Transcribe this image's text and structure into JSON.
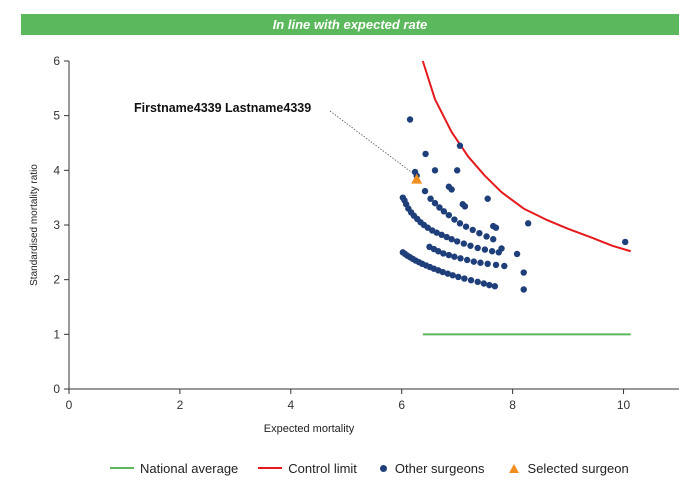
{
  "header": {
    "title": "In line with expected rate"
  },
  "colors": {
    "banner": "#5cb85c",
    "national_average": "#5cb85c",
    "control_limit": "#e41a1c",
    "other_surgeons": "#1f3f7a",
    "selected_surgeon": "#f28e1e",
    "axis": "#333333"
  },
  "chart_data": {
    "type": "scatter",
    "title": "",
    "xlabel": "Expected mortality",
    "ylabel": "Standardised mortality ratio",
    "xlim": [
      0,
      11
    ],
    "ylim": [
      0,
      6
    ],
    "xticks": [
      0,
      2,
      4,
      6,
      8,
      10
    ],
    "yticks": [
      0,
      1,
      2,
      3,
      4,
      5,
      6
    ],
    "grid": false,
    "legend_position": "bottom",
    "annotation": {
      "text": "Firstname4339 Lastname4339",
      "points_to": [
        6.27,
        3.84
      ]
    },
    "series": [
      {
        "name": "National average",
        "kind": "line",
        "points": [
          [
            6.38,
            1.0
          ],
          [
            10.13,
            1.0
          ]
        ]
      },
      {
        "name": "Control limit",
        "kind": "line",
        "points": [
          [
            6.38,
            6.0
          ],
          [
            6.6,
            5.3
          ],
          [
            6.9,
            4.7
          ],
          [
            7.2,
            4.25
          ],
          [
            7.5,
            3.9
          ],
          [
            7.8,
            3.6
          ],
          [
            8.2,
            3.3
          ],
          [
            8.6,
            3.1
          ],
          [
            9.0,
            2.93
          ],
          [
            9.4,
            2.78
          ],
          [
            9.8,
            2.62
          ],
          [
            10.13,
            2.52
          ]
        ]
      },
      {
        "name": "Other surgeons",
        "kind": "scatter",
        "points": [
          [
            6.02,
            3.5
          ],
          [
            6.05,
            3.45
          ],
          [
            6.08,
            3.38
          ],
          [
            6.12,
            3.3
          ],
          [
            6.17,
            3.23
          ],
          [
            6.22,
            3.17
          ],
          [
            6.28,
            3.11
          ],
          [
            6.34,
            3.05
          ],
          [
            6.4,
            3.0
          ],
          [
            6.47,
            2.95
          ],
          [
            6.55,
            2.9
          ],
          [
            6.63,
            2.86
          ],
          [
            6.72,
            2.82
          ],
          [
            6.81,
            2.78
          ],
          [
            6.9,
            2.74
          ],
          [
            7.0,
            2.7
          ],
          [
            7.12,
            2.66
          ],
          [
            7.24,
            2.62
          ],
          [
            7.37,
            2.58
          ],
          [
            7.5,
            2.55
          ],
          [
            7.63,
            2.52
          ],
          [
            7.75,
            2.5
          ],
          [
            6.02,
            2.5
          ],
          [
            6.06,
            2.47
          ],
          [
            6.1,
            2.44
          ],
          [
            6.15,
            2.41
          ],
          [
            6.2,
            2.38
          ],
          [
            6.25,
            2.35
          ],
          [
            6.31,
            2.32
          ],
          [
            6.37,
            2.29
          ],
          [
            6.44,
            2.26
          ],
          [
            6.51,
            2.23
          ],
          [
            6.58,
            2.2
          ],
          [
            6.66,
            2.17
          ],
          [
            6.74,
            2.14
          ],
          [
            6.83,
            2.11
          ],
          [
            6.92,
            2.08
          ],
          [
            7.02,
            2.05
          ],
          [
            7.13,
            2.02
          ],
          [
            7.25,
            1.99
          ],
          [
            7.37,
            1.96
          ],
          [
            7.48,
            1.93
          ],
          [
            7.58,
            1.9
          ],
          [
            6.52,
            3.48
          ],
          [
            6.6,
            3.4
          ],
          [
            6.68,
            3.32
          ],
          [
            6.76,
            3.25
          ],
          [
            6.85,
            3.18
          ],
          [
            6.95,
            3.1
          ],
          [
            7.05,
            3.03
          ],
          [
            7.16,
            2.97
          ],
          [
            7.28,
            2.91
          ],
          [
            7.4,
            2.85
          ],
          [
            7.53,
            2.79
          ],
          [
            7.65,
            2.74
          ],
          [
            6.5,
            2.6
          ],
          [
            6.58,
            2.56
          ],
          [
            6.66,
            2.52
          ],
          [
            6.75,
            2.48
          ],
          [
            6.85,
            2.45
          ],
          [
            6.95,
            2.42
          ],
          [
            7.06,
            2.39
          ],
          [
            7.18,
            2.36
          ],
          [
            7.3,
            2.33
          ],
          [
            7.42,
            2.31
          ],
          [
            7.55,
            2.29
          ],
          [
            7.7,
            2.27
          ],
          [
            6.15,
            4.93
          ],
          [
            6.24,
            3.97
          ],
          [
            6.27,
            3.9
          ],
          [
            6.43,
            4.3
          ],
          [
            6.42,
            3.62
          ],
          [
            6.6,
            4.0
          ],
          [
            6.85,
            3.7
          ],
          [
            6.9,
            3.65
          ],
          [
            7.0,
            4.0
          ],
          [
            7.05,
            4.45
          ],
          [
            7.1,
            3.38
          ],
          [
            7.14,
            3.34
          ],
          [
            7.55,
            3.48
          ],
          [
            7.65,
            2.98
          ],
          [
            7.7,
            2.95
          ],
          [
            7.8,
            2.57
          ],
          [
            7.85,
            2.25
          ],
          [
            8.08,
            2.47
          ],
          [
            8.2,
            2.13
          ],
          [
            8.2,
            1.82
          ],
          [
            7.68,
            1.88
          ],
          [
            8.28,
            3.03
          ],
          [
            10.03,
            2.69
          ]
        ]
      },
      {
        "name": "Selected surgeon",
        "kind": "scatter",
        "marker": "triangle",
        "points": [
          [
            6.27,
            3.84
          ]
        ]
      }
    ]
  }
}
